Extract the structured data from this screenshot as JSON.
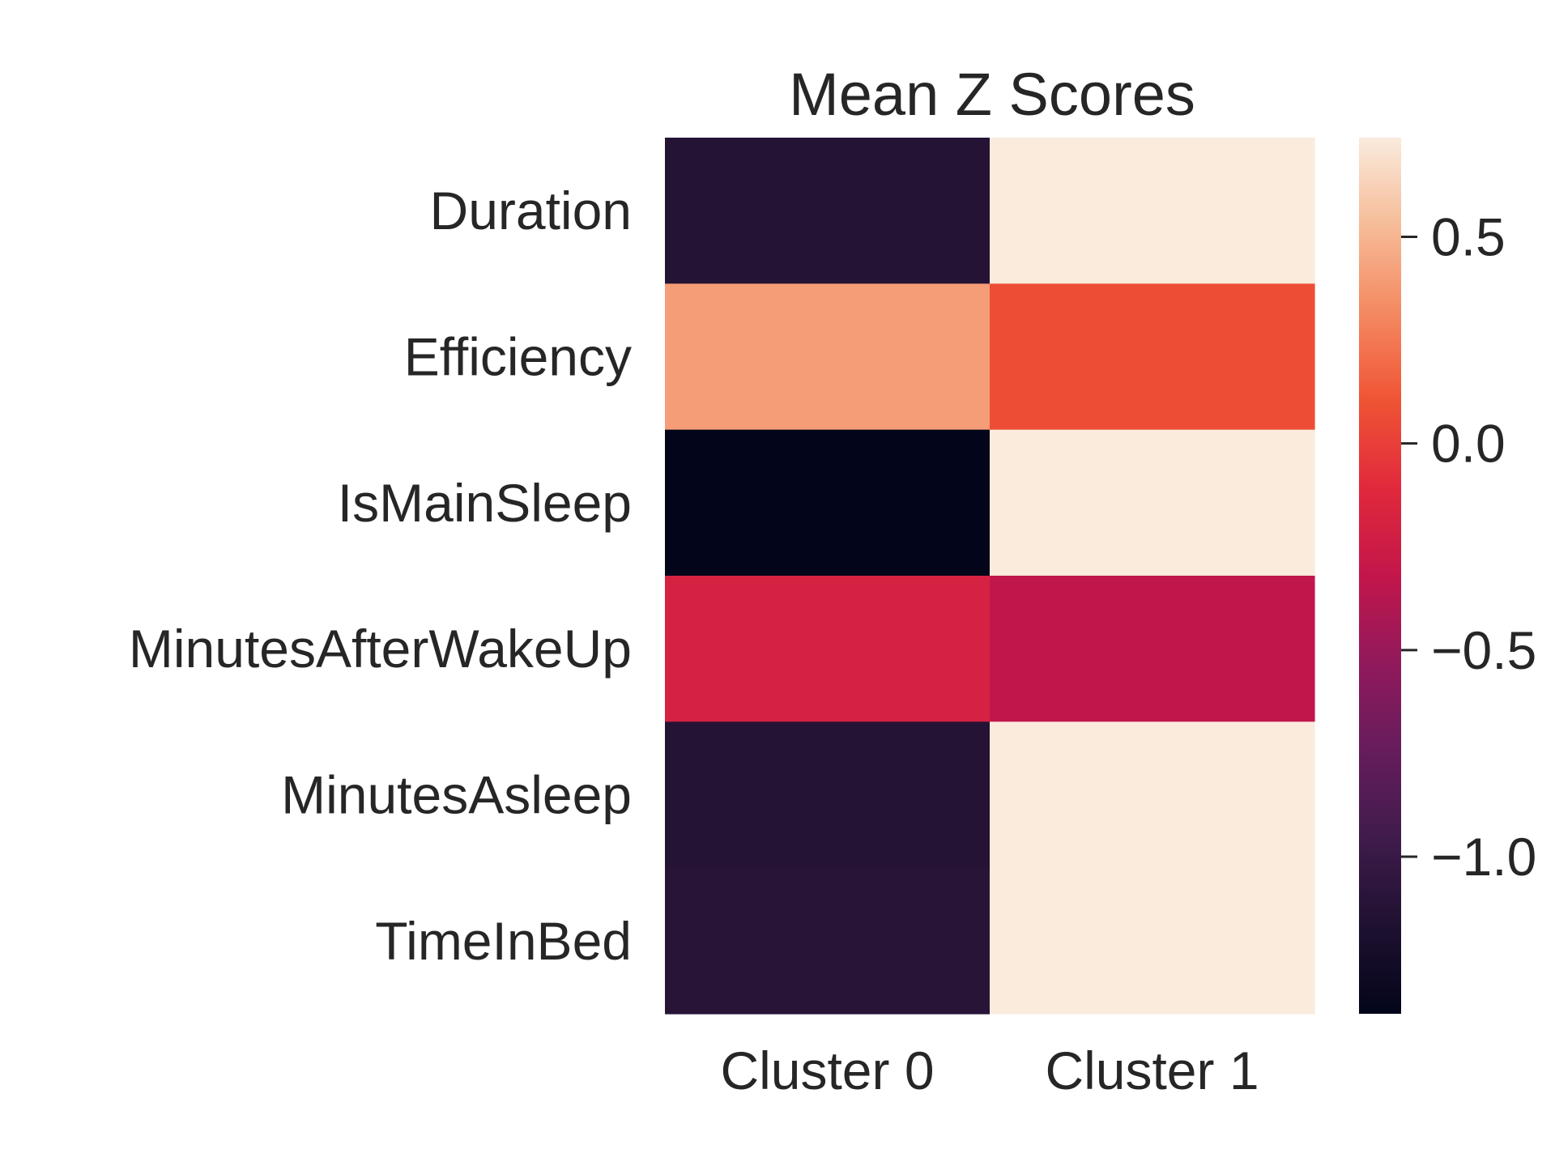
{
  "chart_data": {
    "type": "heatmap",
    "title": "Mean Z Scores",
    "xlabel": "",
    "ylabel": "",
    "columns": [
      "Cluster 0",
      "Cluster 1"
    ],
    "rows": [
      "Duration",
      "Efficiency",
      "IsMainSleep",
      "MinutesAfterWakeUp",
      "MinutesAsleep",
      "TimeInBed"
    ],
    "values": [
      [
        -1.12,
        0.74
      ],
      [
        0.4,
        0.07
      ],
      [
        -1.38,
        0.74
      ],
      [
        -0.19,
        -0.33
      ],
      [
        -1.13,
        0.74
      ],
      [
        -1.11,
        0.74
      ]
    ],
    "colorbar": {
      "range": [
        -1.38,
        0.74
      ],
      "ticks": [
        0.5,
        0.0,
        -0.5,
        -1.0
      ],
      "tick_labels": [
        "0.5",
        "0.0",
        "−0.5",
        "−1.0"
      ],
      "colormap": "rocket"
    }
  }
}
